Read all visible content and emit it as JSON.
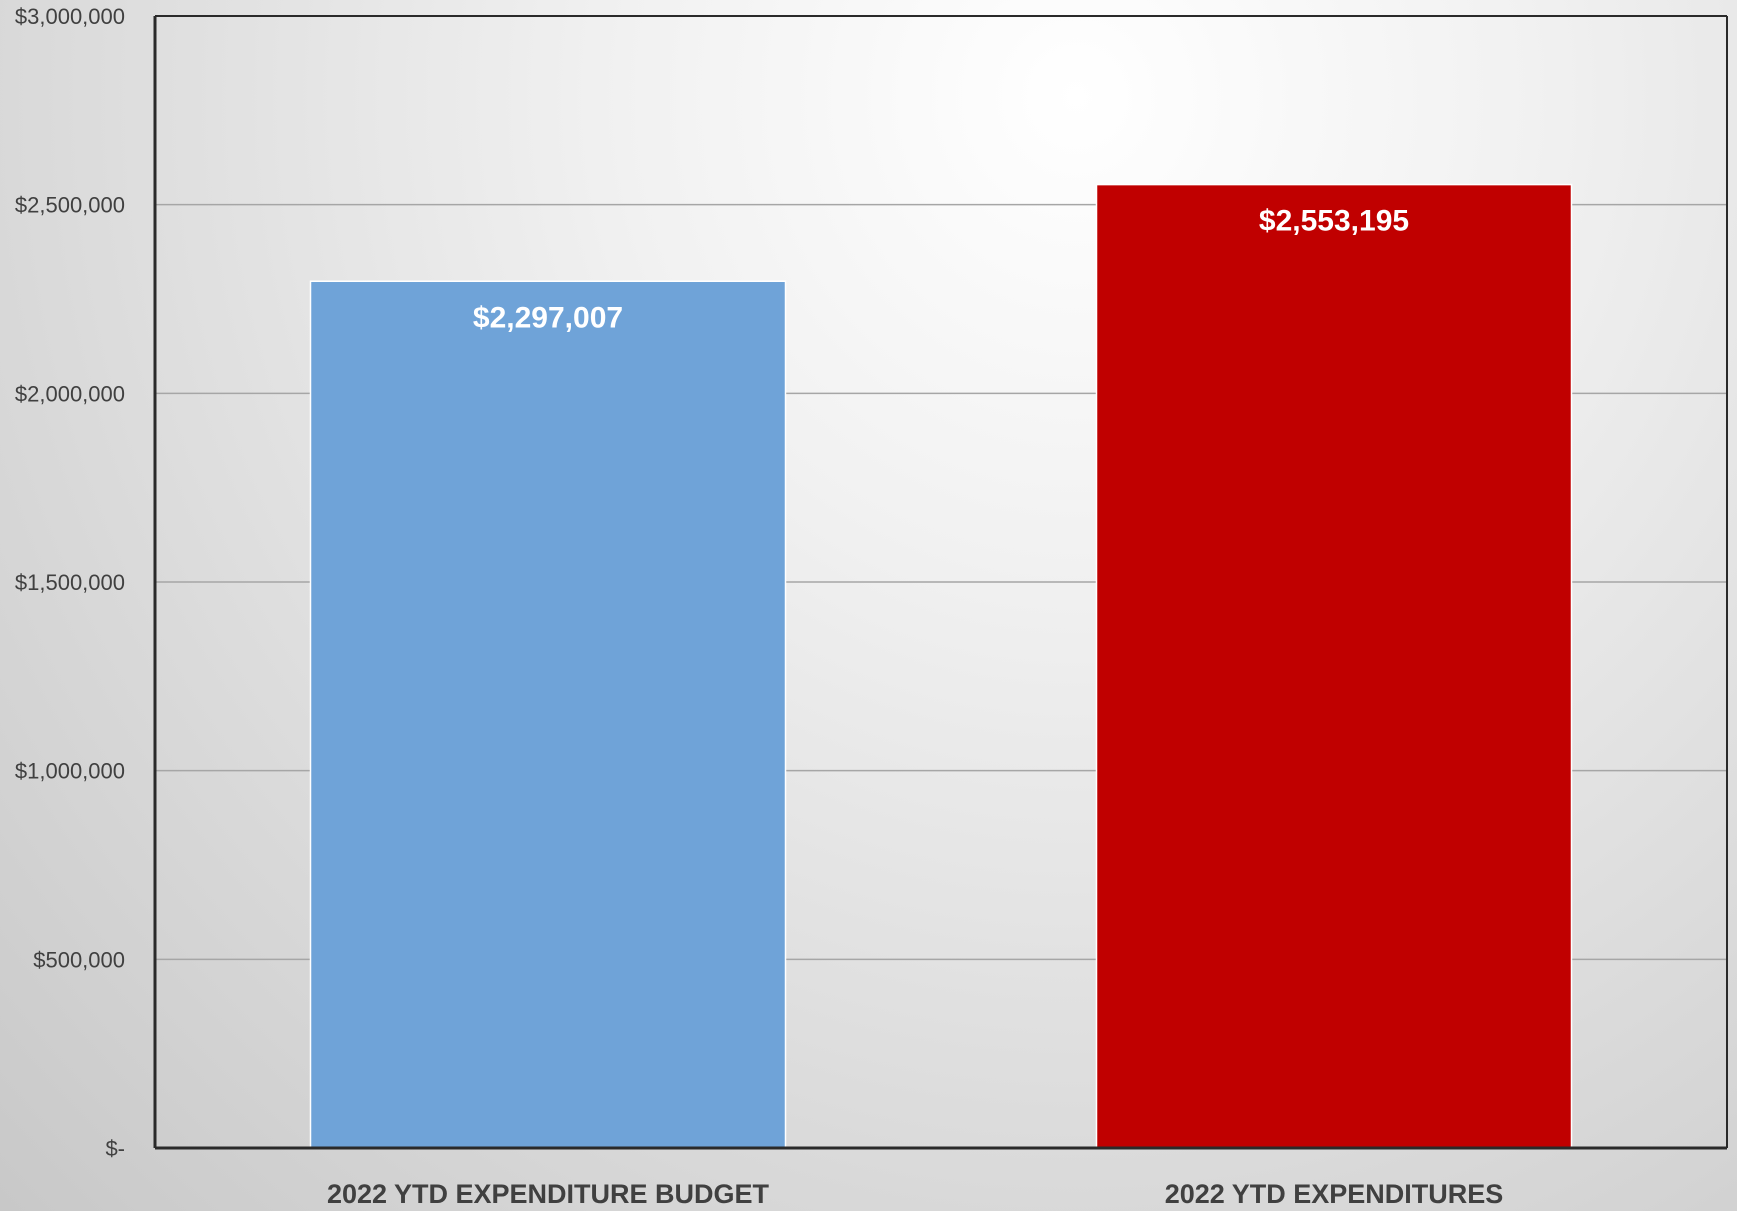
{
  "chart_data": {
    "type": "bar",
    "title": "",
    "xlabel": "",
    "ylabel": "",
    "categories": [
      "2022 YTD EXPENDITURE BUDGET",
      "2022 YTD EXPENDITURES"
    ],
    "values": [
      2297007,
      2553195
    ],
    "data_labels": [
      "$2,297,007",
      "$2,553,195"
    ],
    "bar_colors": [
      "#6fa3d8",
      "#c00000"
    ],
    "ylim": [
      0,
      3000000
    ],
    "yticks": [
      0,
      500000,
      1000000,
      1500000,
      2000000,
      2500000,
      3000000
    ],
    "ytick_labels": [
      "$-",
      "$500,000",
      "$1,000,000",
      "$1,500,000",
      "$2,000,000",
      "$2,500,000",
      "$3,000,000"
    ],
    "grid": true,
    "legend": "none"
  }
}
